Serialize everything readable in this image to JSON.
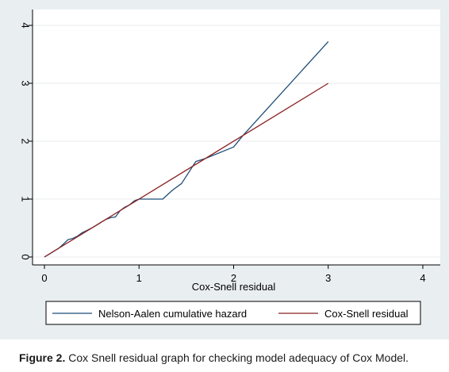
{
  "chart_data": {
    "type": "line",
    "title": "",
    "xlabel": "Cox-Snell residual",
    "ylabel": "",
    "xlim": [
      0,
      4
    ],
    "ylim": [
      0,
      4
    ],
    "x_ticks": [
      "0",
      "1",
      "2",
      "3",
      "4"
    ],
    "y_ticks": [
      "0",
      "1",
      "2",
      "3",
      "4"
    ],
    "grid": "horizontal",
    "legend_position": "bottom",
    "series": [
      {
        "name": "Nelson-Aalen cumulative hazard",
        "color": "#1f4e79",
        "x": [
          0,
          0.05,
          0.1,
          0.15,
          0.2,
          0.25,
          0.3,
          0.35,
          0.4,
          0.45,
          0.5,
          0.55,
          0.6,
          0.65,
          0.7,
          0.75,
          0.8,
          0.85,
          0.9,
          0.95,
          1.0,
          1.1,
          1.25,
          1.35,
          1.45,
          1.6,
          1.7,
          2.0,
          2.1,
          3.0
        ],
        "y": [
          0,
          0.05,
          0.1,
          0.15,
          0.22,
          0.3,
          0.32,
          0.36,
          0.42,
          0.46,
          0.5,
          0.55,
          0.6,
          0.65,
          0.68,
          0.69,
          0.8,
          0.86,
          0.9,
          0.97,
          1.0,
          1.0,
          1.0,
          1.15,
          1.27,
          1.65,
          1.7,
          1.9,
          2.1,
          3.72
        ]
      },
      {
        "name": "Cox-Snell residual",
        "color": "#8b2323",
        "x": [
          0,
          3.0
        ],
        "y": [
          0,
          3.0
        ]
      }
    ]
  },
  "caption": {
    "label": "Figure 2.",
    "text": " Cox Snell residual graph for checking model adequacy of Cox Model."
  },
  "colors": {
    "panel_background": "#e9eef1",
    "plot_background": "#ffffff",
    "grid": "#e7ebee"
  }
}
